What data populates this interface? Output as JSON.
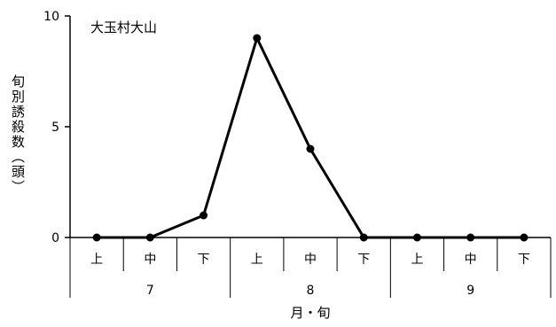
{
  "chart_data": {
    "type": "line",
    "title": "大玉村大山",
    "ylabel": "旬別誘殺数（頭）",
    "xlabel": "月・旬",
    "ylim": [
      0,
      10
    ],
    "yticks": [
      0,
      5,
      10
    ],
    "grid": false,
    "legend": "none",
    "month_groups": [
      {
        "label": "7",
        "periods": [
          "上",
          "中",
          "下"
        ]
      },
      {
        "label": "8",
        "periods": [
          "上",
          "中",
          "下"
        ]
      },
      {
        "label": "9",
        "periods": [
          "上",
          "中",
          "下"
        ]
      }
    ],
    "categories": [
      "7月上",
      "7月中",
      "7月下",
      "8月上",
      "8月中",
      "8月下",
      "9月上",
      "9月中",
      "9月下"
    ],
    "series": [
      {
        "values": [
          0,
          0,
          1,
          9,
          4,
          0,
          0,
          0,
          0
        ],
        "color": "#000000"
      }
    ]
  }
}
